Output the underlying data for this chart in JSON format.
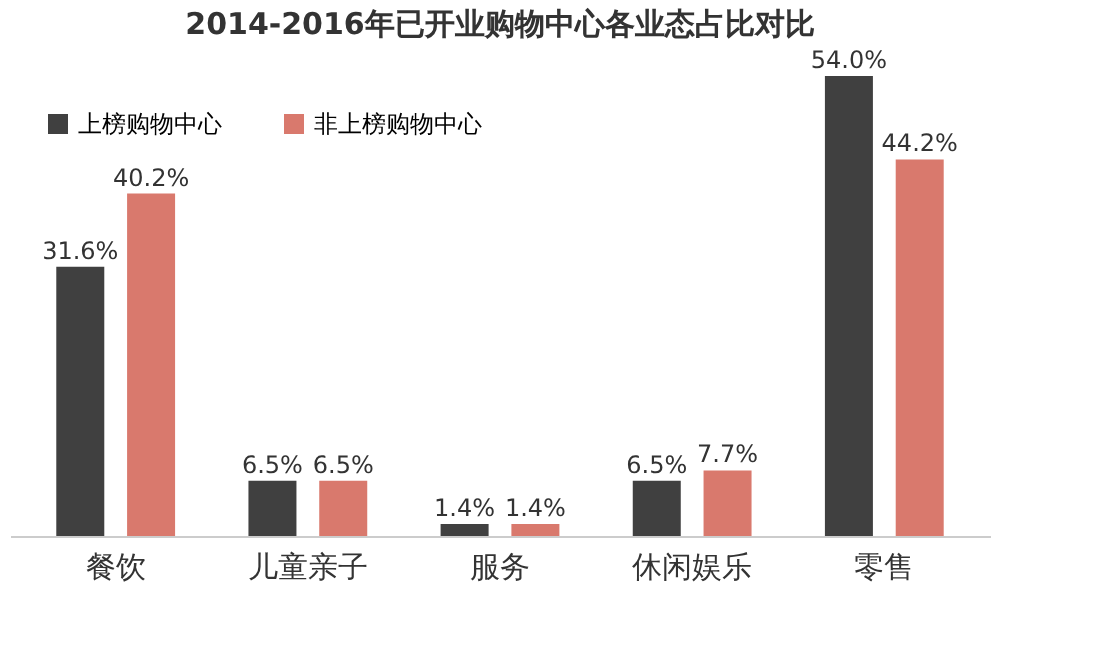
{
  "chart_data": {
    "type": "bar",
    "title": "2014-2016年已开业购物中心各业态占比对比",
    "categories": [
      "餐饮",
      "儿童亲子",
      "服务",
      "休闲娱乐",
      "零售"
    ],
    "series": [
      {
        "name": "上榜购物中心",
        "color": "#404040",
        "values": [
          31.6,
          6.5,
          1.4,
          6.5,
          54.0
        ],
        "value_labels": [
          "31.6%",
          "6.5%",
          "1.4%",
          "6.5%",
          "54.0%"
        ]
      },
      {
        "name": "非上榜购物中心",
        "color": "#d9796d",
        "values": [
          40.2,
          6.5,
          1.4,
          7.7,
          44.2
        ],
        "value_labels": [
          "40.2%",
          "6.5%",
          "1.4%",
          "7.7%",
          "44.2%"
        ]
      }
    ],
    "legend": "top left",
    "grid": false
  }
}
